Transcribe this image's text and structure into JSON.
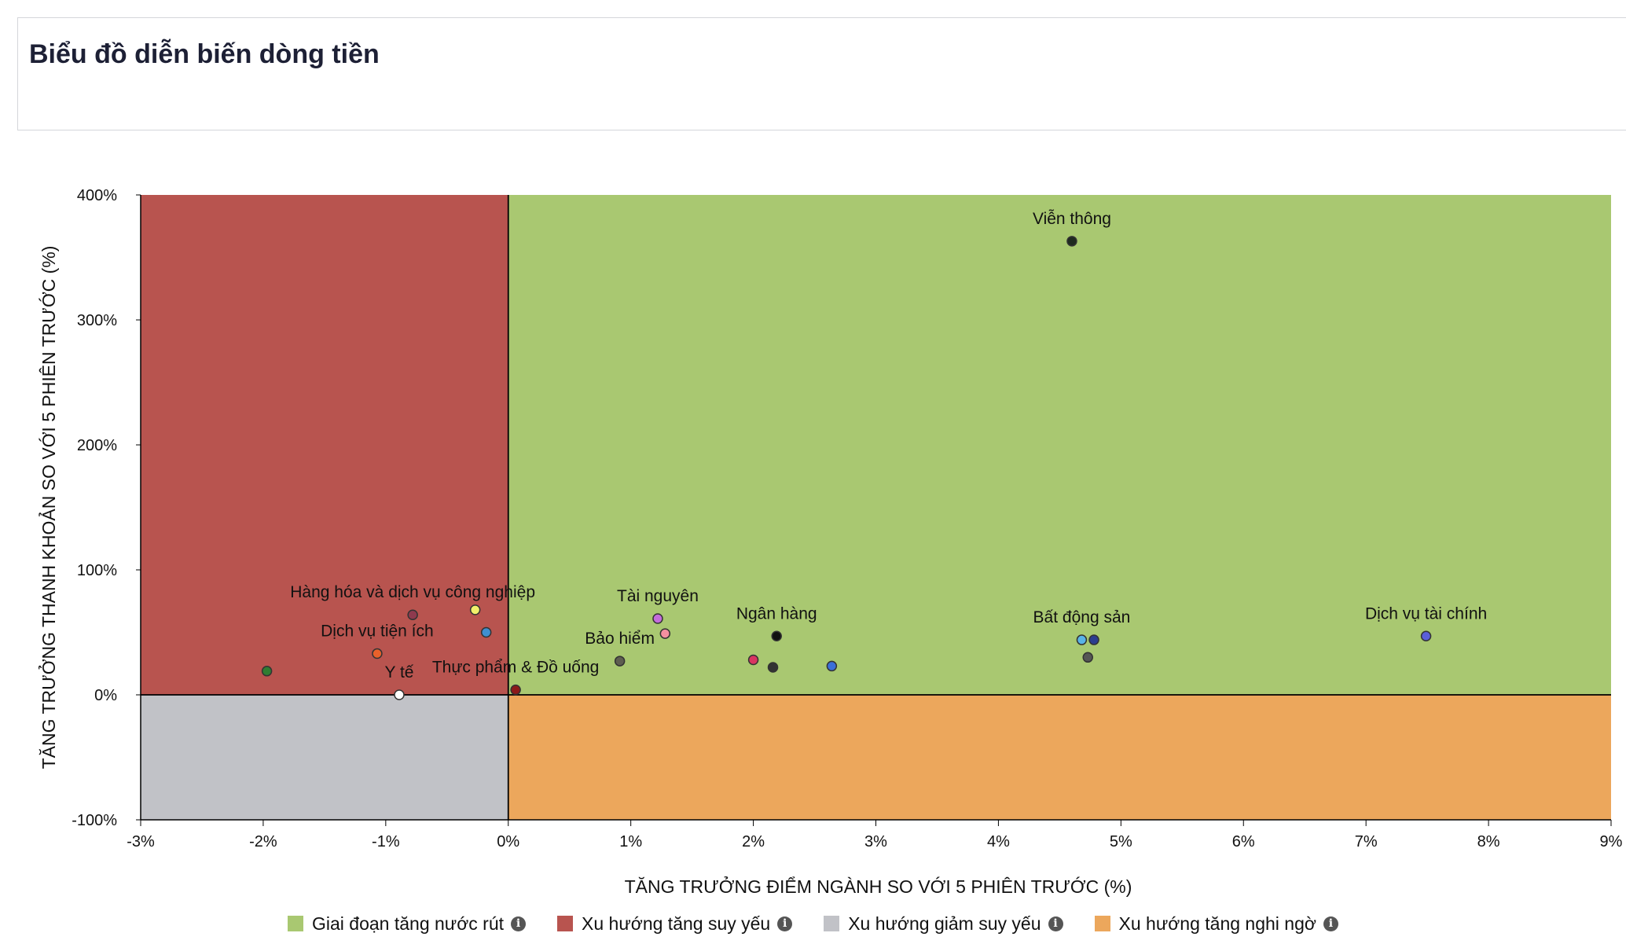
{
  "header": {
    "title": "Biểu đồ diễn biến dòng tiền"
  },
  "chart_data": {
    "type": "scatter",
    "xlabel": "TĂNG TRƯỞNG ĐIỂM NGÀNH SO VỚI 5 PHIÊN TRƯỚC (%)",
    "ylabel": "TĂNG TRƯỞNG THANH KHOẢN SO VỚI 5 PHIÊN TRƯỚC (%)",
    "xlim": [
      -3,
      9
    ],
    "ylim": [
      -100,
      400
    ],
    "x_ticks": [
      "-3%",
      "-2%",
      "-1%",
      "0%",
      "1%",
      "2%",
      "3%",
      "4%",
      "5%",
      "6%",
      "7%",
      "8%",
      "9%"
    ],
    "y_ticks": [
      "-100%",
      "0%",
      "100%",
      "200%",
      "300%",
      "400%"
    ],
    "regions": [
      {
        "name": "Giai đoạn tăng nước rút",
        "color": "#a9c871",
        "x": [
          0,
          9
        ],
        "y": [
          0,
          400
        ]
      },
      {
        "name": "Xu hướng tăng suy yếu",
        "color": "#b8544f",
        "x": [
          -3,
          0
        ],
        "y": [
          0,
          400
        ]
      },
      {
        "name": "Xu hướng giảm suy yếu",
        "color": "#c1c2c7",
        "x": [
          -3,
          0
        ],
        "y": [
          -100,
          0
        ]
      },
      {
        "name": "Xu hướng tăng nghi ngờ",
        "color": "#eca75c",
        "x": [
          0,
          9
        ],
        "y": [
          -100,
          0
        ]
      }
    ],
    "points": [
      {
        "x": 4.6,
        "y": 363,
        "color": "#1f2a1f",
        "label": "Viễn thông"
      },
      {
        "x": -0.78,
        "y": 64,
        "color": "#8e3a4e",
        "label": "Hàng hóa và dịch vụ công nghiệp"
      },
      {
        "x": -0.27,
        "y": 68,
        "color": "#f1f06a",
        "label": ""
      },
      {
        "x": -0.18,
        "y": 50,
        "color": "#3f8fd0",
        "label": ""
      },
      {
        "x": -1.07,
        "y": 33,
        "color": "#e8612b",
        "label": "Dịch vụ tiện ích"
      },
      {
        "x": -1.97,
        "y": 19,
        "color": "#2e7d32",
        "label": ""
      },
      {
        "x": -0.89,
        "y": 0,
        "color": "#ffffff",
        "label": "Y tế"
      },
      {
        "x": 0.06,
        "y": 4,
        "color": "#8c1a1a",
        "label": "Thực phẩm & Đồ uống"
      },
      {
        "x": 1.22,
        "y": 61,
        "color": "#c46cdc",
        "label": "Tài nguyên"
      },
      {
        "x": 1.28,
        "y": 49,
        "color": "#f48fa0",
        "label": ""
      },
      {
        "x": 0.91,
        "y": 27,
        "color": "#5e5e50",
        "label": "Bảo hiểm"
      },
      {
        "x": 2.0,
        "y": 28,
        "color": "#d83561",
        "label": ""
      },
      {
        "x": 2.19,
        "y": 47,
        "color": "#111111",
        "label": "Ngân hàng"
      },
      {
        "x": 2.16,
        "y": 22,
        "color": "#333333",
        "label": ""
      },
      {
        "x": 2.64,
        "y": 23,
        "color": "#3a6fd8",
        "label": ""
      },
      {
        "x": 4.68,
        "y": 44,
        "color": "#59b3e6",
        "label": "Bất động sản"
      },
      {
        "x": 4.78,
        "y": 44,
        "color": "#2c3e8f",
        "label": ""
      },
      {
        "x": 4.73,
        "y": 30,
        "color": "#555555",
        "label": ""
      },
      {
        "x": 7.49,
        "y": 47,
        "color": "#5a5fd8",
        "label": "Dịch vụ tài chính"
      }
    ]
  },
  "legend": [
    {
      "label": "Giai đoạn tăng nước rút",
      "color": "#a9c871"
    },
    {
      "label": "Xu hướng tăng suy yếu",
      "color": "#b8544f"
    },
    {
      "label": "Xu hướng giảm suy yếu",
      "color": "#c1c2c7"
    },
    {
      "label": "Xu hướng tăng nghi ngờ",
      "color": "#eca75c"
    }
  ],
  "info_icon": "info-icon",
  "info_symbol": "i"
}
